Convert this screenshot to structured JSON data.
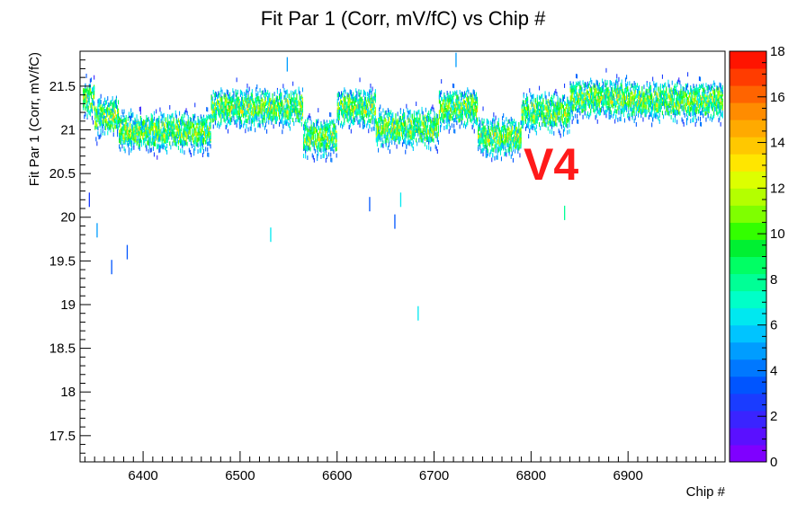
{
  "chart_data": {
    "type": "heatmap",
    "title": "Fit Par 1 (Corr, mV/fC) vs Chip #",
    "xlabel": "Chip #",
    "ylabel": "Fit Par 1 (Corr, mV/fC)",
    "xlim": [
      6335,
      7000
    ],
    "ylim": [
      17.2,
      21.9
    ],
    "x_ticks": [
      6400,
      6500,
      6600,
      6700,
      6800,
      6900
    ],
    "y_ticks": [
      17.5,
      18,
      18.5,
      19,
      19.5,
      20,
      20.5,
      21,
      21.5
    ],
    "colorbar": {
      "min": 0,
      "max": 18,
      "ticks": [
        0,
        2,
        4,
        6,
        8,
        10,
        12,
        14,
        16,
        18
      ]
    },
    "grid": false,
    "annotation": {
      "text": "V4",
      "color": "#ff1a1a"
    },
    "trend_segments": [
      {
        "x": [
          6335,
          6350
        ],
        "y": 21.35
      },
      {
        "x": [
          6350,
          6375
        ],
        "y": 21.15
      },
      {
        "x": [
          6375,
          6470
        ],
        "y": 20.98
      },
      {
        "x": [
          6470,
          6565
        ],
        "y": 21.25
      },
      {
        "x": [
          6565,
          6600
        ],
        "y": 20.92
      },
      {
        "x": [
          6600,
          6640
        ],
        "y": 21.25
      },
      {
        "x": [
          6640,
          6705
        ],
        "y": 21.02
      },
      {
        "x": [
          6705,
          6745
        ],
        "y": 21.25
      },
      {
        "x": [
          6745,
          6790
        ],
        "y": 20.92
      },
      {
        "x": [
          6790,
          6840
        ],
        "y": 21.2
      },
      {
        "x": [
          6840,
          6900
        ],
        "y": 21.36
      },
      {
        "x": [
          6900,
          7000
        ],
        "y": 21.33
      }
    ],
    "outliers": [
      {
        "x": 6344,
        "y": 20.2
      },
      {
        "x": 6352,
        "y": 19.85
      },
      {
        "x": 6367,
        "y": 19.43
      },
      {
        "x": 6383,
        "y": 19.6
      },
      {
        "x": 6531,
        "y": 19.8
      },
      {
        "x": 6633,
        "y": 20.15
      },
      {
        "x": 6659,
        "y": 19.95
      },
      {
        "x": 6665,
        "y": 20.2
      },
      {
        "x": 6683,
        "y": 18.9
      },
      {
        "x": 6834,
        "y": 20.05
      },
      {
        "x": 6548,
        "y": 21.75
      },
      {
        "x": 6722,
        "y": 21.8
      }
    ]
  }
}
